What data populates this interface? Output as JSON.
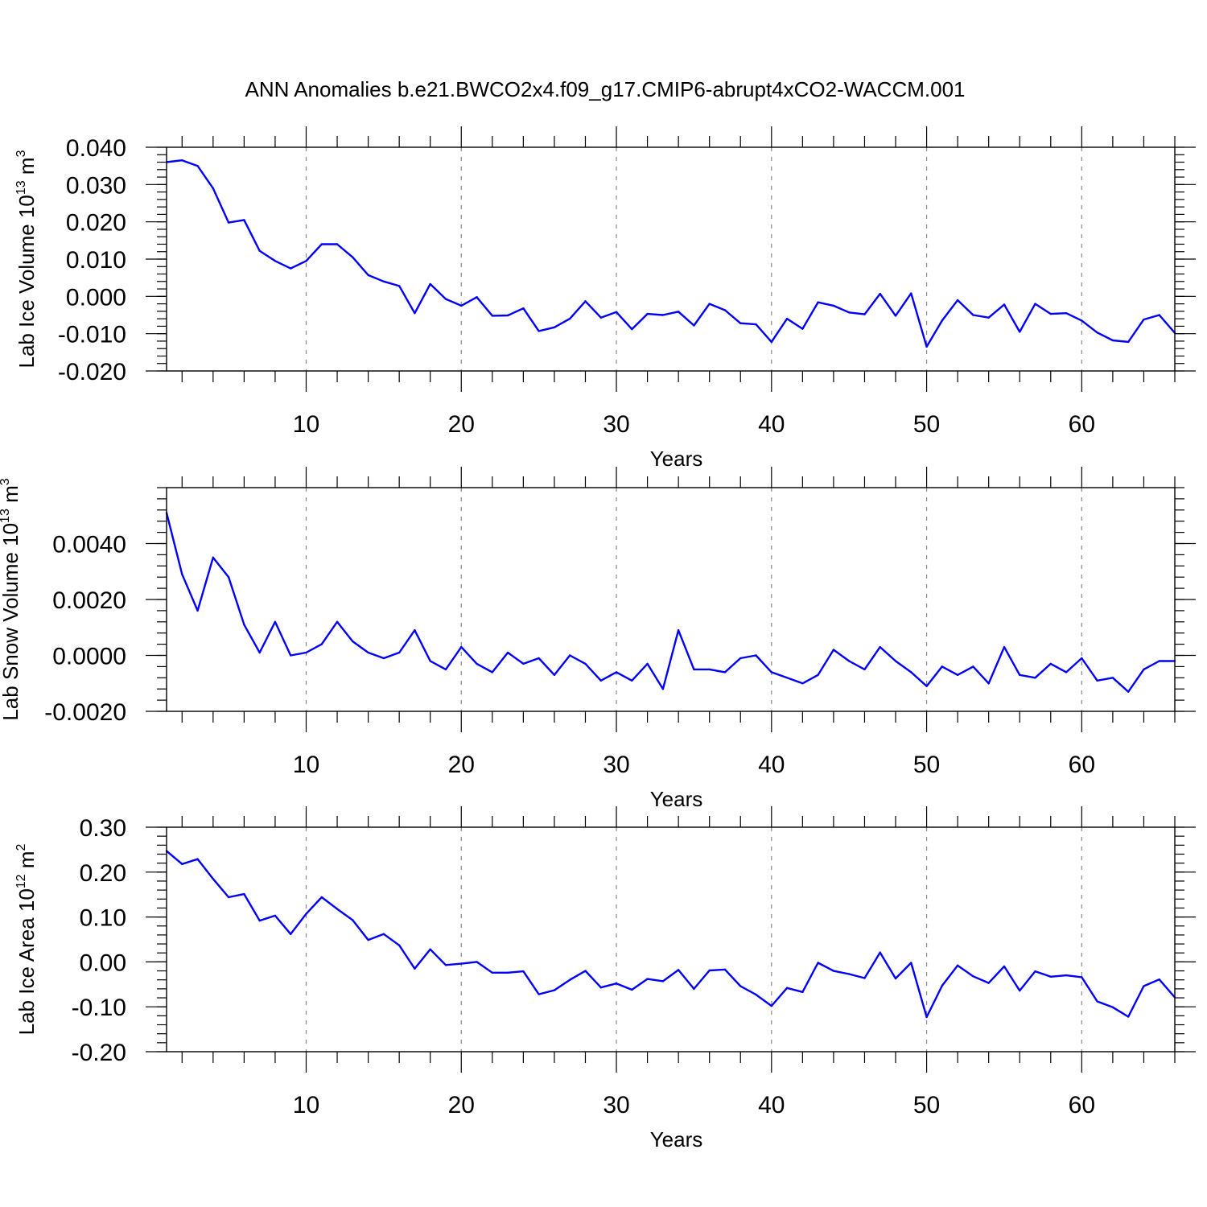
{
  "title": "ANN Anomalies b.e21.BWCO2x4.f09_g17.CMIP6-abrupt4xCO2-WACCM.001",
  "colors": {
    "series": "#0000ff",
    "axis": "#000000",
    "grid": "#888888"
  },
  "chart_data": [
    {
      "type": "line",
      "name": "lab-ice-volume",
      "title": "ANN Anomalies b.e21.BWCO2x4.f09_g17.CMIP6-abrupt4xCO2-WACCM.001",
      "xlabel": "Years",
      "ylabel": "Lab Ice Volume 10",
      "ylabel_exp": "13",
      "ylabel_unit": "m",
      "ylabel_unit_exp": "3",
      "xlim": [
        1,
        66
      ],
      "ylim": [
        -0.02,
        0.04
      ],
      "xticks": [
        10,
        20,
        30,
        40,
        50,
        60
      ],
      "xtick_labels": [
        "10",
        "20",
        "30",
        "40",
        "50",
        "60"
      ],
      "yticks": [
        -0.02,
        -0.01,
        0.0,
        0.01,
        0.02,
        0.03,
        0.04
      ],
      "ytick_labels": [
        "-0.020",
        "-0.010",
        "0.000",
        "0.010",
        "0.020",
        "0.030",
        "0.040"
      ],
      "vgrid": [
        10,
        20,
        30,
        40,
        50,
        60
      ],
      "x_start": 1,
      "values": [
        0.036,
        0.0365,
        0.035,
        0.029,
        0.0198,
        0.0205,
        0.0122,
        0.0095,
        0.0075,
        0.0095,
        0.014,
        0.014,
        0.0105,
        0.0057,
        0.004,
        0.0028,
        -0.0045,
        0.0033,
        -0.0007,
        -0.0025,
        -0.0002,
        -0.0052,
        -0.0051,
        -0.0032,
        -0.0093,
        -0.0083,
        -0.006,
        -0.0013,
        -0.0057,
        -0.0042,
        -0.0088,
        -0.0047,
        -0.005,
        -0.0041,
        -0.0078,
        -0.002,
        -0.0037,
        -0.0072,
        -0.0075,
        -0.0122,
        -0.006,
        -0.0087,
        -0.0016,
        -0.0025,
        -0.0043,
        -0.0048,
        0.0007,
        -0.0052,
        0.0008,
        -0.0135,
        -0.0065,
        -0.001,
        -0.005,
        -0.0057,
        -0.0022,
        -0.0095,
        -0.002,
        -0.0047,
        -0.0045,
        -0.0065,
        -0.0097,
        -0.0118,
        -0.0122,
        -0.0062,
        -0.005,
        -0.0098
      ]
    },
    {
      "type": "line",
      "name": "lab-snow-volume",
      "xlabel": "Years",
      "ylabel": "Lab Snow Volume 10",
      "ylabel_exp": "13",
      "ylabel_unit": "m",
      "ylabel_unit_exp": "3",
      "xlim": [
        1,
        66
      ],
      "ylim": [
        -0.002,
        0.006
      ],
      "xticks": [
        10,
        20,
        30,
        40,
        50,
        60
      ],
      "xtick_labels": [
        "10",
        "20",
        "30",
        "40",
        "50",
        "60"
      ],
      "yticks": [
        -0.002,
        0.0,
        0.002,
        0.004
      ],
      "ytick_labels": [
        "-0.0020",
        "0.0000",
        "0.0020",
        "0.0040"
      ],
      "vgrid": [
        10,
        20,
        30,
        40,
        50,
        60
      ],
      "x_start": 1,
      "values": [
        0.0051,
        0.0029,
        0.0016,
        0.0035,
        0.0028,
        0.0011,
        0.0001,
        0.0012,
        0.0,
        0.0001,
        0.0004,
        0.0012,
        0.0005,
        0.0001,
        -0.0001,
        0.0001,
        0.0009,
        -0.0002,
        -0.0005,
        0.0003,
        -0.0003,
        -0.0006,
        0.0001,
        -0.0003,
        -0.0001,
        -0.0007,
        0.0,
        -0.0003,
        -0.0009,
        -0.0006,
        -0.0009,
        -0.0003,
        -0.0012,
        0.0009,
        -0.0005,
        -0.0005,
        -0.0006,
        -0.0001,
        0.0,
        -0.0006,
        -0.0008,
        -0.001,
        -0.0007,
        0.0002,
        -0.0002,
        -0.0005,
        0.0003,
        -0.0002,
        -0.0006,
        -0.0011,
        -0.0004,
        -0.0007,
        -0.0004,
        -0.001,
        0.0003,
        -0.0007,
        -0.0008,
        -0.0003,
        -0.0006,
        -0.0001,
        -0.0009,
        -0.0008,
        -0.0013,
        -0.0005,
        -0.0002,
        -0.0002
      ]
    },
    {
      "type": "line",
      "name": "lab-ice-area",
      "xlabel": "Years",
      "ylabel": "Lab Ice Area 10",
      "ylabel_exp": "12",
      "ylabel_unit": "m",
      "ylabel_unit_exp": "2",
      "xlim": [
        1,
        66
      ],
      "ylim": [
        -0.2,
        0.3
      ],
      "xticks": [
        10,
        20,
        30,
        40,
        50,
        60
      ],
      "xtick_labels": [
        "10",
        "20",
        "30",
        "40",
        "50",
        "60"
      ],
      "yticks": [
        -0.2,
        -0.1,
        0.0,
        0.1,
        0.2,
        0.3
      ],
      "ytick_labels": [
        "-0.20",
        "-0.10",
        "0.00",
        "0.10",
        "0.20",
        "0.30"
      ],
      "vgrid": [
        10,
        20,
        30,
        40,
        50,
        60
      ],
      "x_start": 1,
      "values": [
        0.247,
        0.218,
        0.229,
        0.185,
        0.144,
        0.151,
        0.092,
        0.103,
        0.062,
        0.107,
        0.144,
        0.118,
        0.093,
        0.049,
        0.062,
        0.037,
        -0.015,
        0.028,
        -0.007,
        -0.004,
        0.0,
        -0.024,
        -0.024,
        -0.021,
        -0.072,
        -0.063,
        -0.04,
        -0.02,
        -0.057,
        -0.048,
        -0.062,
        -0.038,
        -0.043,
        -0.018,
        -0.06,
        -0.019,
        -0.017,
        -0.054,
        -0.073,
        -0.098,
        -0.058,
        -0.067,
        -0.002,
        -0.02,
        -0.027,
        -0.036,
        0.021,
        -0.037,
        -0.002,
        -0.123,
        -0.053,
        -0.008,
        -0.032,
        -0.047,
        -0.01,
        -0.064,
        -0.021,
        -0.033,
        -0.03,
        -0.034,
        -0.088,
        -0.101,
        -0.122,
        -0.054,
        -0.039,
        -0.079
      ]
    }
  ]
}
